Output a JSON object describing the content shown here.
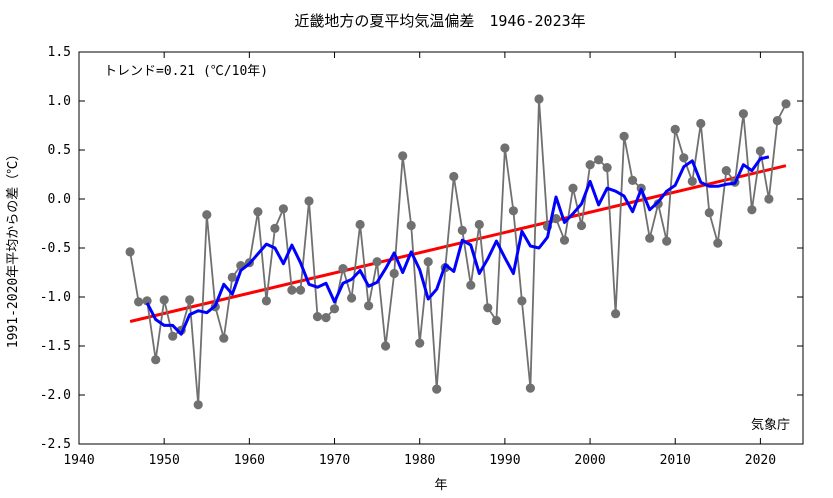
{
  "chart_data": {
    "type": "line",
    "title": "近畿地方の夏平均気温偏差　1946-2023年",
    "xlabel": "年",
    "ylabel": "1991-2020年平均からの差（℃）",
    "trend_label": "トレンド=0.21 (℃/10年)",
    "source": "気象庁",
    "xlim": [
      1940,
      2025
    ],
    "ylim": [
      -2.5,
      1.5
    ],
    "x_ticks": [
      "1940",
      "1950",
      "1960",
      "1970",
      "1980",
      "1990",
      "2000",
      "2010",
      "2020"
    ],
    "y_ticks": [
      "1.5",
      "1.0",
      "0.5",
      "0.0",
      "-0.5",
      "-1.0",
      "-1.5",
      "-2.0",
      "-2.5"
    ],
    "grid": false,
    "x": [
      1946,
      1947,
      1948,
      1949,
      1950,
      1951,
      1952,
      1953,
      1954,
      1955,
      1956,
      1957,
      1958,
      1959,
      1960,
      1961,
      1962,
      1963,
      1964,
      1965,
      1966,
      1967,
      1968,
      1969,
      1970,
      1971,
      1972,
      1973,
      1974,
      1975,
      1976,
      1977,
      1978,
      1979,
      1980,
      1981,
      1982,
      1983,
      1984,
      1985,
      1986,
      1987,
      1988,
      1989,
      1990,
      1991,
      1992,
      1993,
      1994,
      1995,
      1996,
      1997,
      1998,
      1999,
      2000,
      2001,
      2002,
      2003,
      2004,
      2005,
      2006,
      2007,
      2008,
      2009,
      2010,
      2011,
      2012,
      2013,
      2014,
      2015,
      2016,
      2017,
      2018,
      2019,
      2020,
      2021,
      2022,
      2023
    ],
    "series": [
      {
        "values": [
          -0.54,
          -1.05,
          -1.04,
          -1.64,
          -1.03,
          -1.4,
          -1.34,
          -1.03,
          -2.1,
          -0.16,
          -1.1,
          -1.42,
          -0.8,
          -0.68,
          -0.65,
          -0.13,
          -1.04,
          -0.3,
          -0.1,
          -0.93,
          -0.93,
          -0.02,
          -1.2,
          -1.21,
          -1.12,
          -0.71,
          -1.01,
          -0.26,
          -1.09,
          -0.64,
          -1.5,
          -0.76,
          0.44,
          -0.27,
          -1.47,
          -0.64,
          -1.94,
          -0.7,
          0.23,
          -0.32,
          -0.88,
          -0.26,
          -1.11,
          -1.24,
          0.52,
          -0.12,
          -1.04,
          -1.93,
          1.02,
          -0.28,
          -0.2,
          -0.42,
          0.11,
          -0.27,
          0.35,
          0.4,
          0.32,
          -1.17,
          0.64,
          0.19,
          0.11,
          -0.4,
          -0.05,
          -0.43,
          0.71,
          0.42,
          0.18,
          0.77,
          -0.14,
          -0.45,
          0.29,
          0.17,
          0.87,
          -0.11,
          0.49,
          0.0,
          0.8,
          0.97
        ],
        "color": "#707070",
        "marker": "circle"
      },
      {
        "values_5yr": [
          null,
          null,
          -1.06,
          -1.23,
          -1.29,
          -1.29,
          -1.38,
          -1.18,
          -1.14,
          -1.16,
          -1.09,
          -0.87,
          -0.97,
          -0.73,
          -0.66,
          -0.56,
          -0.46,
          -0.5,
          -0.66,
          -0.47,
          -0.65,
          -0.87,
          -0.9,
          -0.86,
          -1.05,
          -0.86,
          -0.82,
          -0.73,
          -0.89,
          -0.85,
          -0.71,
          -0.55,
          -0.75,
          -0.54,
          -0.72,
          -1.02,
          -0.92,
          -0.67,
          -0.74,
          -0.42,
          -0.47,
          -0.76,
          -0.61,
          -0.43,
          -0.6,
          -0.76,
          -0.33,
          -0.48,
          -0.5,
          -0.39,
          0.02,
          -0.24,
          -0.15,
          -0.05,
          0.18,
          -0.06,
          0.11,
          0.08,
          0.03,
          -0.13,
          0.1,
          -0.11,
          -0.03,
          0.08,
          0.14,
          0.33,
          0.39,
          0.17,
          0.13,
          0.13,
          0.15,
          0.16,
          0.35,
          0.29,
          0.41,
          0.43
        ],
        "color": "#0000ff"
      }
    ],
    "trend": {
      "x": [
        1946,
        2023
      ],
      "y": [
        -1.25,
        0.34
      ],
      "color": "#ff0000"
    }
  }
}
